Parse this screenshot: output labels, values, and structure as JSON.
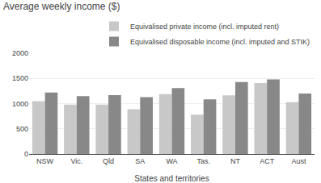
{
  "chart_data": {
    "type": "bar",
    "title": "Average weekly income ($)",
    "xlabel": "States and territories",
    "categories": [
      "NSW",
      "Vic.",
      "Qld",
      "SA",
      "WA",
      "Tas.",
      "NT",
      "ACT",
      "Aust"
    ],
    "series": [
      {
        "name": "Equivalised private income (incl. imputed rent)",
        "color": "#c8c8c8",
        "values": [
          1050,
          980,
          980,
          890,
          1190,
          780,
          1165,
          1410,
          1030
        ]
      },
      {
        "name": "Equivalised disposable income (incl. imputed and STIK)",
        "color": "#888888",
        "values": [
          1220,
          1150,
          1170,
          1130,
          1310,
          1085,
          1430,
          1480,
          1200
        ]
      }
    ],
    "ylim": [
      0,
      2000
    ],
    "yticks": [
      0,
      500,
      1000,
      1500,
      2000
    ],
    "grid": true,
    "legend": "upper right"
  }
}
